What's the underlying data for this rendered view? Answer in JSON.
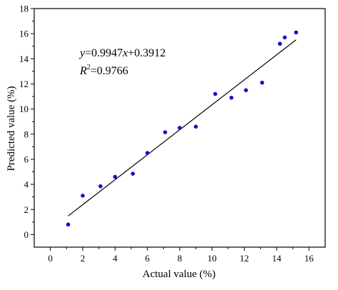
{
  "chart_data": {
    "type": "scatter",
    "xlabel": "Actual value (%)",
    "ylabel": "Predicted value (%)",
    "xlim": [
      -1,
      17
    ],
    "ylim": [
      -1,
      18
    ],
    "x_ticks": [
      0,
      2,
      4,
      6,
      8,
      10,
      12,
      14,
      16
    ],
    "y_ticks": [
      0,
      2,
      4,
      6,
      8,
      10,
      12,
      14,
      16,
      18
    ],
    "grid": false,
    "legend": "none",
    "point_color": "#1010d0",
    "fit_line_color": "#000000",
    "series": [
      {
        "points": [
          {
            "x": 1.1,
            "y": 0.8
          },
          {
            "x": 2.0,
            "y": 3.1
          },
          {
            "x": 3.1,
            "y": 3.85
          },
          {
            "x": 4.0,
            "y": 4.6
          },
          {
            "x": 5.1,
            "y": 4.85
          },
          {
            "x": 6.0,
            "y": 6.5
          },
          {
            "x": 7.1,
            "y": 8.15
          },
          {
            "x": 8.0,
            "y": 8.5
          },
          {
            "x": 9.0,
            "y": 8.6
          },
          {
            "x": 10.2,
            "y": 11.2
          },
          {
            "x": 11.2,
            "y": 10.9
          },
          {
            "x": 12.1,
            "y": 11.5
          },
          {
            "x": 13.1,
            "y": 12.1
          },
          {
            "x": 14.2,
            "y": 15.2
          },
          {
            "x": 14.5,
            "y": 15.7
          },
          {
            "x": 15.2,
            "y": 16.1
          }
        ]
      }
    ],
    "fit_line": {
      "slope": 0.9947,
      "intercept": 0.3912,
      "x_range": [
        1.1,
        15.2
      ]
    },
    "annotations": {
      "equation": {
        "y_var": "y",
        "equals_slope": "=0.9947",
        "x_var": "x",
        "plus_intercept": "+0.3912"
      },
      "r_squared": {
        "r_var": "R",
        "superscript": "2",
        "value_text": "=0.9766"
      }
    }
  }
}
